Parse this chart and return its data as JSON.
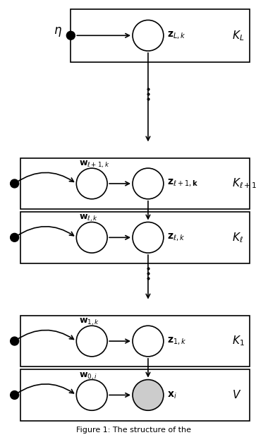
{
  "figure_width": 3.8,
  "figure_height": 6.16,
  "dpi": 100,
  "bg_color": "#ffffff",
  "node_color_white": "#ffffff",
  "node_color_gray": "#cccccc",
  "node_edge_color": "#000000",
  "line_color": "#000000"
}
